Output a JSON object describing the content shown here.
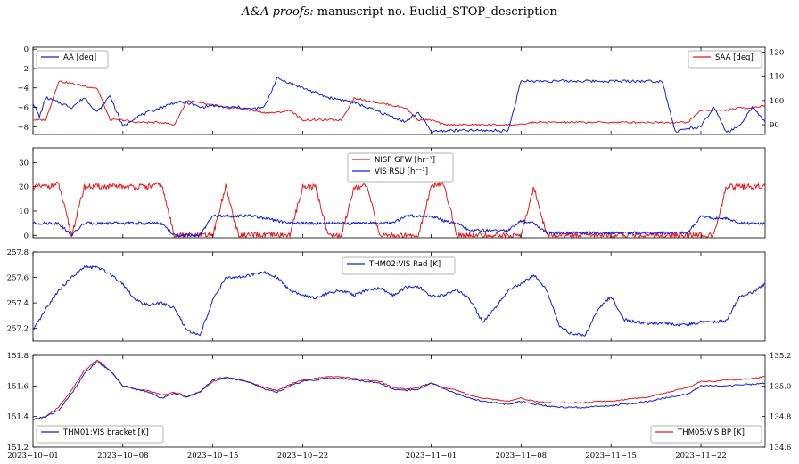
{
  "header": {
    "journal": "A&A proofs:",
    "rest": "manuscript no. Euclid_STOP_description"
  },
  "colors": {
    "red": "#e8191d",
    "blue": "#1020d8"
  },
  "chart_data": [
    {
      "type": "line",
      "panel": "attitude",
      "x_range": [
        "2023-10-01",
        "2023-11-27"
      ],
      "left_axis": {
        "ylim": [
          -8.8,
          0.2
        ],
        "ticks": [
          0,
          -2,
          -4,
          -6,
          -8
        ],
        "tick_labels": [
          "0",
          "−2",
          "−4",
          "−6",
          "−8"
        ]
      },
      "right_axis": {
        "ylim": [
          86,
          122
        ],
        "ticks": [
          90,
          100,
          110,
          120
        ],
        "tick_labels": [
          "90",
          "100",
          "110",
          "120"
        ]
      },
      "series": [
        {
          "name": "AA [deg]",
          "axis": "left",
          "color": "blue",
          "x": [
            0,
            0.5,
            1,
            2,
            3,
            4,
            5,
            6,
            7,
            8,
            9,
            10,
            11,
            12,
            13,
            14,
            15,
            16,
            17,
            18,
            19,
            20,
            21,
            22,
            23,
            24,
            25,
            26,
            27,
            28,
            29,
            30,
            31,
            32,
            33,
            34,
            35,
            36,
            37,
            38,
            39,
            40,
            41,
            42,
            43,
            44,
            45,
            46,
            47,
            48,
            49,
            50,
            51,
            52,
            53,
            54,
            55,
            56,
            57
          ],
          "y": [
            -5.5,
            -7,
            -5,
            -5.5,
            -6,
            -5,
            -6.5,
            -4.8,
            -8,
            -7,
            -6.5,
            -6,
            -5.5,
            -5.5,
            -6,
            -5.8,
            -6,
            -6,
            -6.2,
            -6,
            -3,
            -3.5,
            -4,
            -4.5,
            -5,
            -5.2,
            -5.5,
            -6,
            -6.5,
            -7,
            -7.5,
            -6.5,
            -8.5,
            -8.4,
            -8.4,
            -8.4,
            -8.4,
            -8.4,
            -8.4,
            -3.3,
            -3.3,
            -3.3,
            -3.3,
            -3.3,
            -3.3,
            -3.3,
            -3.3,
            -3.3,
            -3.3,
            -3.3,
            -3.3,
            -8.5,
            -8.2,
            -8,
            -6,
            -8.6,
            -8,
            -6,
            -7.5
          ]
        },
        {
          "name": "SAA [deg]",
          "axis": "right",
          "color": "red",
          "x": [
            0,
            1,
            2,
            3,
            4,
            5,
            6,
            7,
            8,
            9,
            10,
            11,
            12,
            13,
            14,
            15,
            16,
            17,
            18,
            19,
            20,
            21,
            22,
            23,
            24,
            25,
            26,
            27,
            28,
            29,
            30,
            31,
            32,
            33,
            34,
            35,
            36,
            37,
            38,
            39,
            40,
            41,
            42,
            43,
            44,
            45,
            46,
            47,
            48,
            49,
            50,
            51,
            52,
            53,
            54,
            55,
            56,
            57
          ],
          "y": [
            92,
            92,
            108,
            107,
            106,
            105,
            92,
            92,
            91,
            91,
            91,
            90,
            100,
            99,
            98,
            97,
            97,
            96,
            95,
            95,
            96,
            92,
            92,
            92,
            92,
            101,
            100,
            99,
            98,
            97,
            92,
            92,
            90,
            90,
            90,
            90,
            90,
            90,
            90,
            91,
            91,
            91,
            91,
            91,
            91,
            91,
            91,
            91,
            91,
            91,
            91,
            91,
            96,
            96,
            96,
            97,
            97,
            98
          ]
        }
      ]
    },
    {
      "type": "line",
      "panel": "rates",
      "x_range": [
        "2023-10-01",
        "2023-11-27"
      ],
      "ylim": [
        -1,
        36
      ],
      "ticks": [
        0,
        10,
        20,
        30
      ],
      "tick_labels": [
        "0",
        "10",
        "20",
        "30"
      ],
      "series": [
        {
          "name": "NISP GFW [hr⁻¹]",
          "color": "red",
          "x": [
            0,
            1,
            2,
            3,
            4,
            5,
            6,
            7,
            8,
            9,
            10,
            11,
            12,
            13,
            14,
            15,
            16,
            17,
            18,
            19,
            20,
            21,
            22,
            23,
            24,
            25,
            26,
            27,
            28,
            29,
            30,
            31,
            32,
            33,
            34,
            35,
            36,
            37,
            38,
            39,
            40,
            41,
            42,
            43,
            44,
            45,
            46,
            47,
            48,
            49,
            50,
            51,
            52,
            53,
            54,
            55,
            56,
            57
          ],
          "y": [
            20,
            20,
            21,
            0,
            20,
            20,
            20,
            20,
            20,
            20,
            21,
            0,
            0,
            0,
            0,
            20,
            0,
            0,
            0,
            0,
            0,
            20,
            20,
            0,
            0,
            20,
            20,
            0,
            0,
            0,
            0,
            20,
            21,
            0,
            0,
            0,
            0,
            0,
            0,
            20,
            0,
            0,
            0,
            0,
            0,
            0,
            0,
            0,
            0,
            0,
            0,
            0,
            0,
            0,
            20,
            20,
            20,
            20
          ]
        },
        {
          "name": "VIS RSU [hr⁻¹]",
          "color": "blue",
          "x": [
            0,
            1,
            2,
            3,
            4,
            5,
            6,
            7,
            8,
            9,
            10,
            11,
            12,
            13,
            14,
            15,
            16,
            17,
            18,
            19,
            20,
            21,
            22,
            23,
            24,
            25,
            26,
            27,
            28,
            29,
            30,
            31,
            32,
            33,
            34,
            35,
            36,
            37,
            38,
            39,
            40,
            41,
            42,
            43,
            44,
            45,
            46,
            47,
            48,
            49,
            50,
            51,
            52,
            53,
            54,
            55,
            56,
            57
          ],
          "y": [
            5,
            5,
            5,
            0,
            5,
            5,
            5,
            5,
            5,
            5,
            5,
            0,
            0,
            0,
            8,
            8,
            8,
            8,
            7,
            6,
            5,
            5,
            5,
            5,
            5,
            5,
            5,
            5,
            5,
            8,
            8,
            8,
            6,
            5,
            2,
            2,
            2,
            2,
            6,
            5,
            1,
            1,
            1,
            1,
            1,
            1,
            1,
            1,
            1,
            1,
            1,
            1,
            8,
            7,
            7,
            5,
            5,
            5
          ]
        }
      ]
    },
    {
      "type": "line",
      "panel": "vis-rad",
      "x_range": [
        "2023-10-01",
        "2023-11-27"
      ],
      "ylim": [
        257.1,
        257.8
      ],
      "ticks": [
        257.2,
        257.4,
        257.6,
        257.8
      ],
      "tick_labels": [
        "257.2",
        "257.4",
        "257.6",
        "257.8"
      ],
      "series": [
        {
          "name": "THM02:VIS Rad [K]",
          "color": "blue",
          "x": [
            0,
            1,
            2,
            3,
            4,
            5,
            6,
            7,
            8,
            9,
            10,
            11,
            12,
            13,
            14,
            15,
            16,
            17,
            18,
            19,
            20,
            21,
            22,
            23,
            24,
            25,
            26,
            27,
            28,
            29,
            30,
            31,
            32,
            33,
            34,
            35,
            36,
            37,
            38,
            39,
            40,
            41,
            42,
            43,
            44,
            45,
            46,
            47,
            48,
            49,
            50,
            51,
            52,
            53,
            54,
            55,
            56,
            57
          ],
          "y": [
            257.18,
            257.35,
            257.5,
            257.6,
            257.68,
            257.68,
            257.63,
            257.55,
            257.42,
            257.38,
            257.4,
            257.36,
            257.18,
            257.15,
            257.42,
            257.6,
            257.6,
            257.62,
            257.64,
            257.6,
            257.5,
            257.46,
            257.44,
            257.48,
            257.5,
            257.46,
            257.5,
            257.52,
            257.46,
            257.52,
            257.53,
            257.45,
            257.46,
            257.5,
            257.43,
            257.25,
            257.36,
            257.5,
            257.55,
            257.62,
            257.5,
            257.22,
            257.15,
            257.15,
            257.35,
            257.45,
            257.27,
            257.25,
            257.24,
            257.24,
            257.23,
            257.23,
            257.25,
            257.25,
            257.26,
            257.45,
            257.48,
            257.55
          ]
        }
      ]
    },
    {
      "type": "line",
      "panel": "temps",
      "x_range": [
        "2023-10-01",
        "2023-11-27"
      ],
      "left_axis": {
        "ylim": [
          151.2,
          151.8
        ],
        "ticks": [
          151.2,
          151.4,
          151.6,
          151.8
        ],
        "tick_labels": [
          "151.2",
          "151.4",
          "151.6",
          "151.8"
        ]
      },
      "right_axis": {
        "ylim": [
          134.6,
          135.2
        ],
        "ticks": [
          134.6,
          134.8,
          135.0,
          135.2
        ],
        "tick_labels": [
          "134.6",
          "134.8",
          "135.0",
          "135.2"
        ]
      },
      "x_ticks": [
        0,
        7,
        14,
        21,
        31,
        38,
        45,
        52
      ],
      "x_tick_labels": [
        "2023−10−01",
        "2023−10−08",
        "2023−10−15",
        "2023−10−22",
        "2023−11−01",
        "2023−11−08",
        "2023−11−15",
        "2023−11−22"
      ],
      "series": [
        {
          "name": "THM01:VIS bracket [K]",
          "axis": "left",
          "color": "blue",
          "x": [
            0,
            1,
            2,
            3,
            4,
            5,
            6,
            7,
            8,
            9,
            10,
            11,
            12,
            13,
            14,
            15,
            16,
            17,
            18,
            19,
            20,
            21,
            22,
            23,
            24,
            25,
            26,
            27,
            28,
            29,
            30,
            31,
            32,
            33,
            34,
            35,
            36,
            37,
            38,
            39,
            40,
            41,
            42,
            43,
            44,
            45,
            46,
            47,
            48,
            49,
            50,
            51,
            52,
            53,
            54,
            55,
            56,
            57
          ],
          "y": [
            151.38,
            151.4,
            151.44,
            151.55,
            151.68,
            151.76,
            151.7,
            151.6,
            151.58,
            151.56,
            151.52,
            151.55,
            151.53,
            151.56,
            151.64,
            151.66,
            151.64,
            151.62,
            151.58,
            151.56,
            151.6,
            151.63,
            151.64,
            151.65,
            151.65,
            151.64,
            151.63,
            151.62,
            151.58,
            151.57,
            151.58,
            151.62,
            151.58,
            151.55,
            151.52,
            151.5,
            151.49,
            151.48,
            151.5,
            151.48,
            151.47,
            151.46,
            151.46,
            151.46,
            151.47,
            151.47,
            151.48,
            151.49,
            151.5,
            151.52,
            151.53,
            151.55,
            151.6,
            151.6,
            151.6,
            151.61,
            151.61,
            151.62
          ]
        },
        {
          "name": "THM05:VIS BP [K]",
          "axis": "right",
          "color": "red",
          "x": [
            0,
            1,
            2,
            3,
            4,
            5,
            6,
            7,
            8,
            9,
            10,
            11,
            12,
            13,
            14,
            15,
            16,
            17,
            18,
            19,
            20,
            21,
            22,
            23,
            24,
            25,
            26,
            27,
            28,
            29,
            30,
            31,
            32,
            33,
            34,
            35,
            36,
            37,
            38,
            39,
            40,
            41,
            42,
            43,
            44,
            45,
            46,
            47,
            48,
            49,
            50,
            51,
            52,
            53,
            54,
            55,
            56,
            57
          ],
          "y": [
            134.78,
            134.8,
            134.86,
            134.97,
            135.1,
            135.17,
            135.1,
            135.0,
            134.98,
            134.97,
            134.94,
            134.96,
            134.93,
            134.96,
            135.03,
            135.05,
            135.04,
            135.02,
            134.99,
            134.97,
            135.01,
            135.04,
            135.05,
            135.06,
            135.06,
            135.05,
            135.04,
            135.03,
            134.99,
            134.98,
            134.99,
            135.02,
            134.99,
            134.97,
            134.94,
            134.92,
            134.91,
            134.9,
            134.92,
            134.9,
            134.89,
            134.89,
            134.89,
            134.89,
            134.9,
            134.9,
            134.91,
            134.92,
            134.93,
            134.95,
            134.97,
            134.99,
            135.03,
            135.03,
            135.04,
            135.04,
            135.05,
            135.06
          ]
        }
      ]
    }
  ]
}
